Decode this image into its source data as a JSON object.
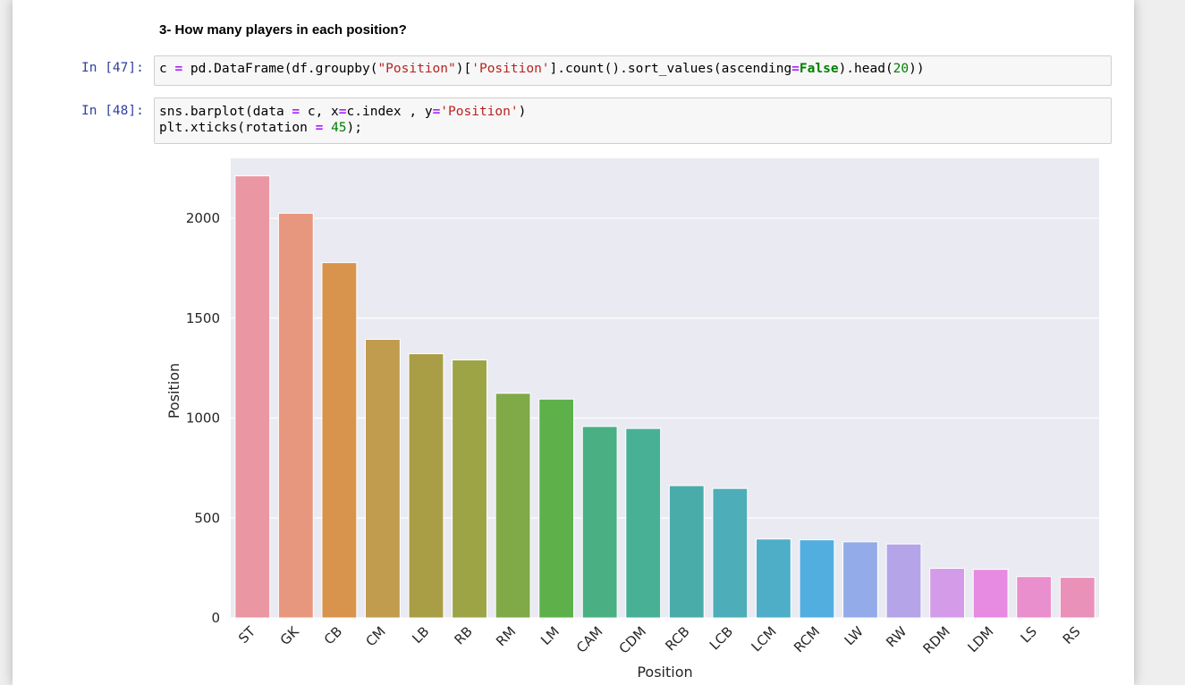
{
  "notebook": {
    "heading": "3- How many players in each position?",
    "cells": [
      {
        "prompt": "In [47]:",
        "lines": [
          [
            {
              "t": "c "
            },
            {
              "t": "=",
              "c": "op"
            },
            {
              "t": " pd.DataFrame(df.groupby("
            },
            {
              "t": "\"Position\"",
              "c": "str"
            },
            {
              "t": ")["
            },
            {
              "t": "'Position'",
              "c": "str"
            },
            {
              "t": "].count().sort_values(ascending"
            },
            {
              "t": "=",
              "c": "op"
            },
            {
              "t": "False",
              "c": "kw"
            },
            {
              "t": ").head("
            },
            {
              "t": "20",
              "c": "num"
            },
            {
              "t": "))"
            }
          ]
        ]
      },
      {
        "prompt": "In [48]:",
        "lines": [
          [
            {
              "t": "sns.barplot(data "
            },
            {
              "t": "=",
              "c": "op"
            },
            {
              "t": " c, x"
            },
            {
              "t": "=",
              "c": "op"
            },
            {
              "t": "c.index , y"
            },
            {
              "t": "=",
              "c": "op"
            },
            {
              "t": "'Position'",
              "c": "str"
            },
            {
              "t": ")"
            }
          ],
          [
            {
              "t": "plt.xticks(rotation "
            },
            {
              "t": "=",
              "c": "op"
            },
            {
              "t": " "
            },
            {
              "t": "45",
              "c": "num"
            },
            {
              "t": ");"
            }
          ]
        ]
      }
    ]
  },
  "chart_data": {
    "type": "bar",
    "categories": [
      "ST",
      "GK",
      "CB",
      "CM",
      "LB",
      "RB",
      "RM",
      "LM",
      "CAM",
      "CDM",
      "RCB",
      "LCB",
      "LCM",
      "RCM",
      "LW",
      "RW",
      "RDM",
      "LDM",
      "LS",
      "RS"
    ],
    "values": [
      2212,
      2025,
      1778,
      1394,
      1322,
      1291,
      1124,
      1095,
      958,
      948,
      662,
      648,
      395,
      391,
      381,
      370,
      248,
      243,
      207,
      203
    ],
    "colors": [
      "#ea96a3",
      "#e8977f",
      "#d8944c",
      "#c19b4e",
      "#a99d46",
      "#9ca446",
      "#80a947",
      "#5eb14a",
      "#4aaf83",
      "#47b095",
      "#4aaca9",
      "#4dadb8",
      "#4eaec8",
      "#53aee0",
      "#93abe8",
      "#b6a4e9",
      "#d39be8",
      "#e68ae2",
      "#e98fcd",
      "#ea91ba"
    ],
    "xlabel": "Position",
    "ylabel": "Position",
    "ylim": [
      0,
      2300
    ],
    "yticks": [
      0,
      500,
      1000,
      1500,
      2000
    ],
    "grid": true,
    "background": "#eaeaf2",
    "xtick_rotation": 45
  }
}
